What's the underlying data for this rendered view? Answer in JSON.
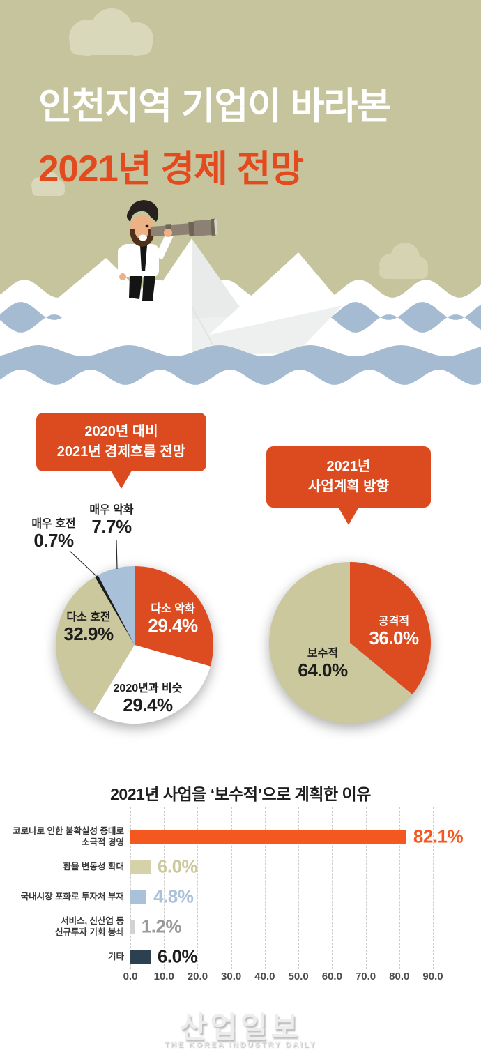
{
  "header": {
    "title_line1": "인천지역 기업이 바라본",
    "title_line2": "2021년 경제 전망"
  },
  "bubbles": {
    "left": {
      "line1": "2020년 대비",
      "line2": "2021년 경제흐름 전망"
    },
    "right": {
      "line1": "2021년",
      "line2": "사업계획 방향"
    }
  },
  "colors": {
    "sky": "#c6c49d",
    "cloud": "#d9d8ba",
    "wave_blue": "#a5bbd1",
    "title_orange": "#e34a1e",
    "bubble_orange": "#dc4b1f",
    "text_dark": "#1d1d1b"
  },
  "chart_data": [
    {
      "type": "pie",
      "title": "2020년 대비 2021년 경제흐름 전망",
      "labels": [
        "다소 악화",
        "2020년과 비슷",
        "다소 호전",
        "매우 호전",
        "매우 악화"
      ],
      "values": [
        29.4,
        29.4,
        32.9,
        0.7,
        7.7
      ],
      "value_labels": [
        "29.4%",
        "29.4%",
        "32.9%",
        "0.7%",
        "7.7%"
      ],
      "colors": [
        "#dd4b20",
        "#ffffff",
        "#cbc89e",
        "#1d1d1b",
        "#a8c0d8"
      ],
      "start_angle": "top",
      "direction": "clockwise",
      "legend": "labels on slices, small slices called out with leader lines"
    },
    {
      "type": "pie",
      "title": "2021년 사업계획 방향",
      "labels": [
        "공격적",
        "보수적"
      ],
      "values": [
        36.0,
        64.0
      ],
      "value_labels": [
        "36.0%",
        "64.0%"
      ],
      "colors": [
        "#dd4b20",
        "#cbc89e"
      ],
      "start_angle": "top",
      "direction": "clockwise",
      "legend": "labels on slices"
    },
    {
      "type": "bar",
      "orientation": "horizontal",
      "title": "2021년 사업을 ‘보수적’으로 계획한 이유",
      "categories": [
        "코로나로 인한 불확실성 증대로 소극적 경영",
        "환율 변동성 확대",
        "국내시장 포화로 투자처 부재",
        "서비스, 신산업 등 신규투자 기회 봉쇄",
        "기타"
      ],
      "categories_lines": [
        [
          "코로나로 인한 불확실성 증대로",
          "소극적 경영"
        ],
        [
          "환율 변동성 확대"
        ],
        [
          "국내시장 포화로 투자처 부재"
        ],
        [
          "서비스, 신산업 등",
          "신규투자 기회 봉쇄"
        ],
        [
          "기타"
        ]
      ],
      "values": [
        82.1,
        6.0,
        4.8,
        1.2,
        6.0
      ],
      "value_labels": [
        "82.1%",
        "6.0%",
        "4.8%",
        "1.2%",
        "6.0%"
      ],
      "bar_colors": [
        "#f4581f",
        "#d5d1a8",
        "#a9c2da",
        "#d2d2d2",
        "#2d4050"
      ],
      "value_label_colors": [
        "#f4581f",
        "#cdc99d",
        "#a9c2da",
        "#9a9a9a",
        "#1d1d1b"
      ],
      "xlim": [
        0,
        90
      ],
      "xticks": [
        0,
        10,
        20,
        30,
        40,
        50,
        60,
        70,
        80,
        90
      ],
      "xtick_labels": [
        "0.0",
        "10.0",
        "20.0",
        "30.0",
        "40.0",
        "50.0",
        "60.0",
        "70.0",
        "80.0",
        "90.0"
      ],
      "grid": "vertical dashed"
    }
  ],
  "footer": {
    "logo_kr": "산업일보",
    "logo_en": "THE KOREA INDUSTRY DAILY"
  }
}
